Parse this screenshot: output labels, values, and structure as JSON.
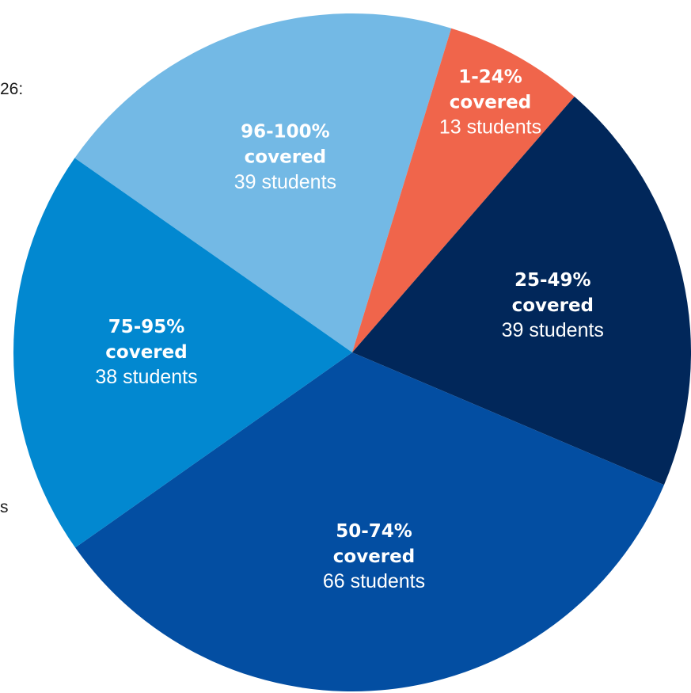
{
  "side_fragments": [
    "26:",
    "s"
  ],
  "chart_data": {
    "type": "pie",
    "title": "",
    "start_angle_deg": -55,
    "direction": "clockwise",
    "slices": [
      {
        "label": "96-100%",
        "sub": "covered",
        "value": 39,
        "value_text": "39 students",
        "color": "#73b9e5"
      },
      {
        "label": "1-24%",
        "sub": "covered",
        "value": 13,
        "value_text": "13 students",
        "color": "#f0654b"
      },
      {
        "label": "25-49%",
        "sub": "covered",
        "value": 39,
        "value_text": "39 students",
        "color": "#01275a"
      },
      {
        "label": "50-74%",
        "sub": "covered",
        "value": 66,
        "value_text": "66 students",
        "color": "#034ea2"
      },
      {
        "label": "75-95%",
        "sub": "covered",
        "value": 38,
        "value_text": "38 students",
        "color": "#0288d0"
      }
    ]
  }
}
